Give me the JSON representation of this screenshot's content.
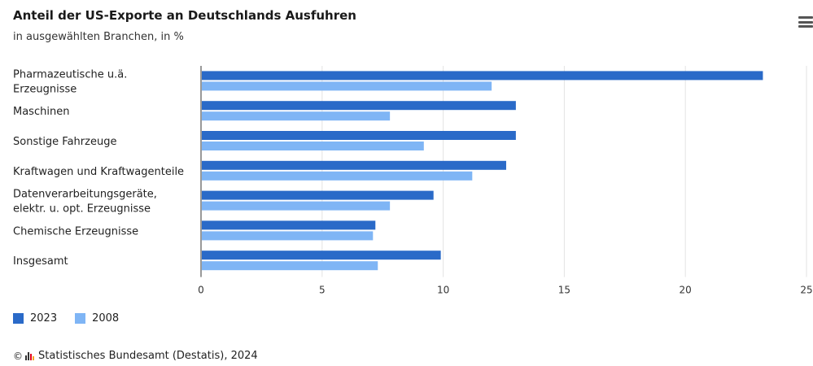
{
  "header": {
    "title": "Anteil der US-Exporte an Deutschlands Ausfuhren",
    "subtitle": "in ausgewählten Branchen, in %"
  },
  "menu": {
    "icon": "hamburger-menu-icon"
  },
  "colors": {
    "series2023": "#2a6ac8",
    "series2008": "#7fb5f5",
    "grid": "#e3e3e3",
    "axis": "#333333"
  },
  "chart_data": {
    "type": "bar",
    "orientation": "horizontal",
    "categories": [
      [
        "Pharmazeutische u.ä.",
        "Erzeugnisse"
      ],
      [
        "Maschinen"
      ],
      [
        "Sonstige Fahrzeuge"
      ],
      [
        "Kraftwagen und Kraftwagenteile"
      ],
      [
        "Datenverarbeitungsgeräte,",
        "elektr. u. opt. Erzeugnisse"
      ],
      [
        "Chemische Erzeugnisse"
      ],
      [
        "Insgesamt"
      ]
    ],
    "series": [
      {
        "name": "2023",
        "values": [
          23.2,
          13.0,
          13.0,
          12.6,
          9.6,
          7.2,
          9.9
        ]
      },
      {
        "name": "2008",
        "values": [
          12.0,
          7.8,
          9.2,
          11.2,
          7.8,
          7.1,
          7.3
        ]
      }
    ],
    "xlim": [
      0,
      25
    ],
    "xticks": [
      "0",
      "5",
      "10",
      "15",
      "20",
      "25"
    ],
    "grid": true,
    "legend_position": "bottom-left"
  },
  "footer": {
    "copyright": "©",
    "source": "Statistisches Bundesamt (Destatis), 2024"
  }
}
